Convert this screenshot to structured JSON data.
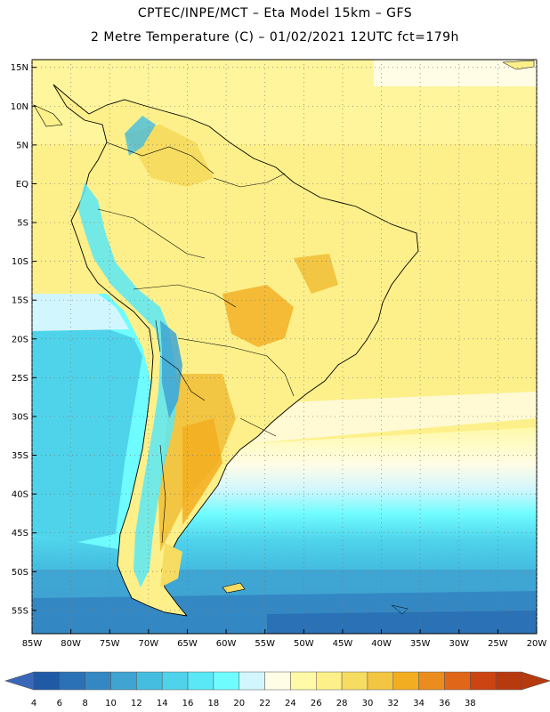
{
  "title": {
    "line1": "CPTEC/INPE/MCT –  Eta Model 15km – GFS",
    "line2": "2 Metre Temperature (C) – 01/02/2021 12UTC fct=179h"
  },
  "map": {
    "lon_range": [
      -85,
      -20
    ],
    "lat_range": [
      -58,
      16
    ],
    "lat_labels": [
      "15N",
      "10N",
      "5N",
      "EQ",
      "5S",
      "10S",
      "15S",
      "20S",
      "25S",
      "30S",
      "35S",
      "40S",
      "45S",
      "50S",
      "55S"
    ],
    "lat_values": [
      15,
      10,
      5,
      0,
      -5,
      -10,
      -15,
      -20,
      -25,
      -30,
      -35,
      -40,
      -45,
      -50,
      -55
    ],
    "lon_labels": [
      "85W",
      "80W",
      "75W",
      "70W",
      "65W",
      "60W",
      "55W",
      "50W",
      "45W",
      "40W",
      "35W",
      "30W",
      "25W",
      "20W"
    ],
    "lon_values": [
      -85,
      -80,
      -75,
      -70,
      -65,
      -60,
      -55,
      -50,
      -45,
      -40,
      -35,
      -30,
      -25,
      -20
    ]
  },
  "colorbar": {
    "labels": [
      "4",
      "6",
      "8",
      "10",
      "12",
      "14",
      "16",
      "18",
      "20",
      "22",
      "24",
      "26",
      "28",
      "30",
      "32",
      "34",
      "36",
      "38"
    ],
    "colors": [
      "#1e5aa6",
      "#2a71b5",
      "#3388c4",
      "#3fa4d2",
      "#45bde0",
      "#4fd3eb",
      "#5ae8f6",
      "#6ffcff",
      "#d2f6fd",
      "#fffde6",
      "#fff9a8",
      "#fdf08a",
      "#f7dc62",
      "#f2c542",
      "#f3ad20",
      "#ea8d1e",
      "#e0661a",
      "#cc4412",
      "#b73a0f"
    ],
    "below_color": "#3a67b8",
    "above_color": "#b73a0f"
  }
}
